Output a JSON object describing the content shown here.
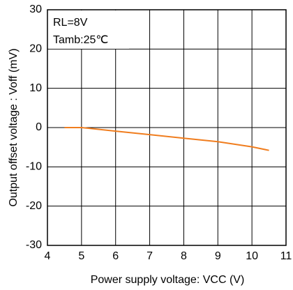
{
  "chart_data": {
    "type": "line",
    "xlabel": "Power supply voltage: VCC (V)",
    "ylabel": "Output offset voltage : Voff (mV)",
    "annotations": [
      "RL=8V",
      "Tamb:25℃"
    ],
    "x": [
      4.5,
      5,
      6,
      7,
      8,
      9,
      10,
      10.5
    ],
    "series": [
      {
        "color": "#f07d1e",
        "values": [
          0,
          0,
          -0.9,
          -1.8,
          -2.7,
          -3.6,
          -4.9,
          -5.8
        ]
      }
    ],
    "xlim": [
      4,
      11
    ],
    "xticks": [
      4,
      5,
      6,
      7,
      8,
      9,
      10,
      11
    ],
    "ylim": [
      -30,
      30
    ],
    "yticks": [
      -30,
      -20,
      -10,
      0,
      10,
      20,
      30
    ],
    "grid": true
  }
}
